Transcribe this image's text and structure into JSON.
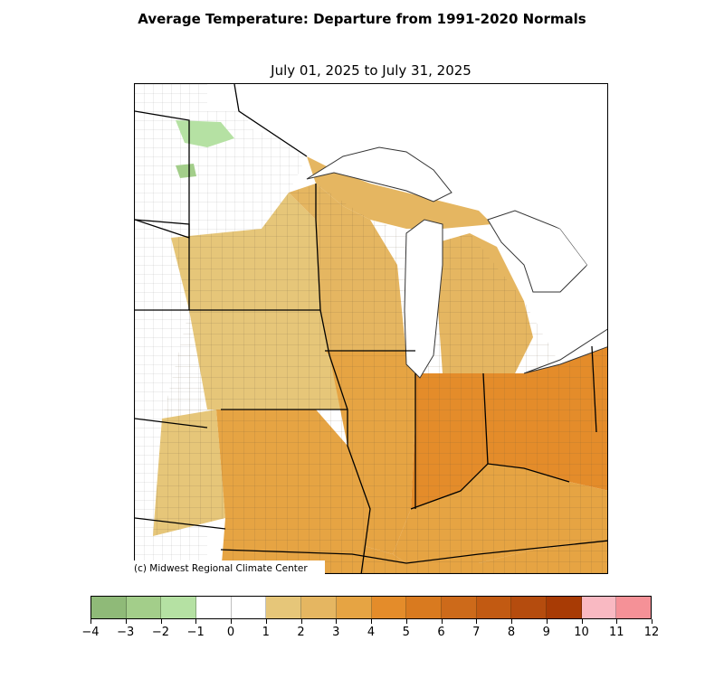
{
  "title": "Average Temperature: Departure from 1991-2020 Normals",
  "subtitle": "July 01, 2025 to July 31, 2025",
  "credit": "(c) Midwest Regional Climate Center",
  "colorbar": {
    "ticks": [
      "−4",
      "−3",
      "−2",
      "−1",
      "0",
      "1",
      "2",
      "3",
      "4",
      "5",
      "6",
      "7",
      "8",
      "9",
      "10",
      "11",
      "12"
    ],
    "colors": [
      "#8fba78",
      "#a3ce8a",
      "#b5e1a3",
      "#ffffff",
      "#ffffff",
      "#e6c679",
      "#e5b661",
      "#e6a443",
      "#e48c2a",
      "#d97a1f",
      "#cd6a1a",
      "#c25a12",
      "#b54c0e",
      "#a83b05",
      "#f9b9c2",
      "#f59197"
    ]
  },
  "map": {
    "lake_color": "#ffffff",
    "border_color": "#000000",
    "county_color": "#555555",
    "regions": [
      {
        "name": "minnesota-north",
        "value": -0.5
      },
      {
        "name": "minnesota-south",
        "value": 1.5
      },
      {
        "name": "wisconsin",
        "value": 2.5
      },
      {
        "name": "michigan-lower",
        "value": 3.0
      },
      {
        "name": "iowa",
        "value": 2.0
      },
      {
        "name": "missouri",
        "value": 2.8
      },
      {
        "name": "illinois",
        "value": 3.5
      },
      {
        "name": "indiana",
        "value": 4.5
      },
      {
        "name": "ohio",
        "value": 4.5
      },
      {
        "name": "kentucky",
        "value": 4.0
      }
    ]
  }
}
